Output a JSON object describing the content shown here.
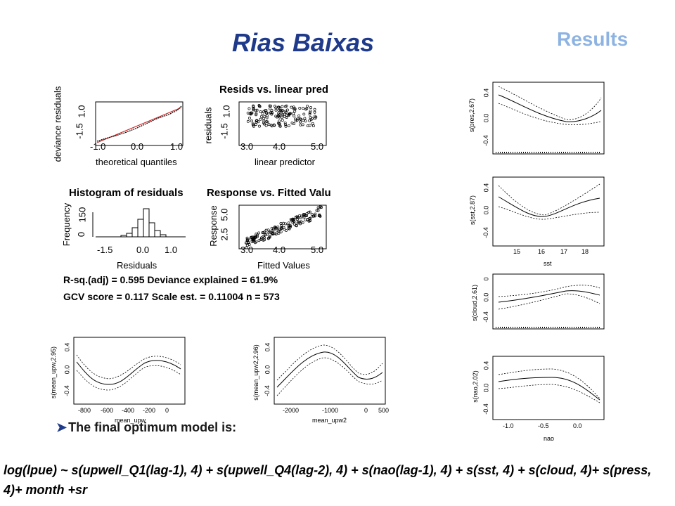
{
  "title": "Rias Baixas",
  "section": "Results",
  "diagnostics": {
    "qq": {
      "ylabel": "deviance residuals",
      "xlabel": "theoretical quantiles",
      "yticks": [
        "-1.5",
        "1.0"
      ],
      "xticks": [
        "-1.0",
        "0.0",
        "1.0"
      ]
    },
    "resids": {
      "title": "Resids vs. linear pred",
      "ylabel": "residuals",
      "xlabel": "linear predictor",
      "yticks": [
        "-1.5",
        "1.0"
      ],
      "xticks": [
        "3.0",
        "4.0",
        "5.0"
      ]
    },
    "hist": {
      "title": "Histogram of residuals",
      "ylabel": "Frequency",
      "xlabel": "Residuals",
      "yticks": [
        "0",
        "150"
      ],
      "xticks": [
        "-1.5",
        "0.0",
        "1.0"
      ]
    },
    "response": {
      "title": "Response vs. Fitted Valu",
      "ylabel": "Response",
      "xlabel": "Fitted Values",
      "yticks": [
        "2.5",
        "5.0"
      ],
      "xticks": [
        "3.0",
        "4.0",
        "5.0"
      ]
    }
  },
  "stats": {
    "line1": "R-sq.(adj) =  0.595   Deviance explained = 61.9%",
    "line2": "GCV score =  0.117  Scale est. = 0.11004   n = 573"
  },
  "smooths": {
    "pres": {
      "ylabel": "s(pres,2.67)",
      "yticks": [
        "0.4",
        "0.0",
        "-0.4"
      ]
    },
    "sst": {
      "ylabel": "s(sst,2.87)",
      "yticks": [
        "0.4",
        "0.0",
        "-0.4"
      ],
      "xticks": [
        "15",
        "16",
        "17",
        "18"
      ],
      "xlabel": "sst"
    },
    "cloud": {
      "ylabel": "s(cloud,2.61)",
      "yticks": [
        "0",
        "0.0",
        "-0.4"
      ]
    },
    "nao": {
      "ylabel": "s(nao,2.02)",
      "yticks": [
        "0.4",
        "0.0",
        "-0.4"
      ],
      "xticks": [
        "-1.0",
        "-0.5",
        "0.0"
      ],
      "xlabel": "nao"
    },
    "upw1": {
      "ylabel": "s(mean_upw,2.95)",
      "yticks": [
        "0.4",
        "0.0",
        "-0.4"
      ],
      "xticks": [
        "-800",
        "-600",
        "-400",
        "-200",
        "0"
      ],
      "xlabel": "mean_upw"
    },
    "upw2": {
      "ylabel": "s(mean_upw2,2.96)",
      "yticks": [
        "0.4",
        "0.0",
        "-0.4"
      ],
      "xticks": [
        "-2000",
        "-1000",
        "0",
        "500"
      ],
      "xlabel": "mean_upw2"
    }
  },
  "bullet_text": "The final optimum model is:",
  "formula": " log(lpue) ~ s(upwell_Q1(lag-1), 4) + s(upwell_Q4(lag-2), 4) + s(nao(lag-1), 4) + s(sst, 4) + s(cloud, 4)+ s(press, 4)+ month +sr"
}
